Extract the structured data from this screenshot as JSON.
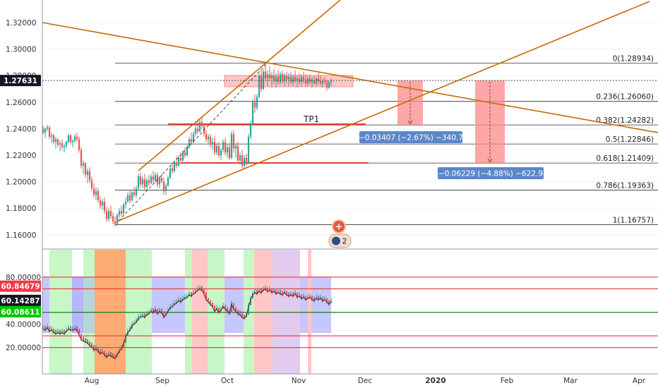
{
  "chart_data": [
    {
      "type": "candlestick",
      "panel": "price",
      "y_ticks": [
        "1.32000",
        "1.30000",
        "1.28000",
        "1.26000",
        "1.24000",
        "1.22000",
        "1.20000",
        "1.18000",
        "1.16000"
      ],
      "ylim": [
        1.151,
        1.334
      ],
      "current_price_label": "1.27631",
      "current_price": 1.27631,
      "fib_levels": [
        {
          "ratio": 0,
          "price": 1.28934,
          "label": "0(1.28934)"
        },
        {
          "ratio": 0.236,
          "price": 1.2606,
          "label": "0.236(1.26060)"
        },
        {
          "ratio": 0.382,
          "price": 1.24282,
          "label": "0.382(1.24282)"
        },
        {
          "ratio": 0.5,
          "price": 1.22846,
          "label": "0.5(1.22846)"
        },
        {
          "ratio": 0.618,
          "price": 1.21409,
          "label": "0.618(1.21409)"
        },
        {
          "ratio": 0.786,
          "price": 1.19363,
          "label": "0.786(1.19363)"
        },
        {
          "ratio": 1,
          "price": 1.16757,
          "label": "1(1.16757)"
        }
      ],
      "annotations": {
        "tp1": "TP1",
        "measure_1": "−0.03407 (−2.67%) −340.7",
        "measure_2": "−0.06229 (−4.88%) −622.9",
        "badge_count": "2"
      },
      "x_ticks": [
        "Aug",
        "Sep",
        "Oct",
        "Nov",
        "Dec",
        "2020",
        "Feb",
        "Mar",
        "Apr"
      ],
      "colors": {
        "up": "#26a69a",
        "down": "#ef5350",
        "trend": "#c56a00",
        "fib": "#333333",
        "price_tag": "#131722"
      }
    },
    {
      "type": "line",
      "panel": "oscillator",
      "y_ticks": [
        "80.00000",
        "60.00000",
        "40.00000",
        "20.00000"
      ],
      "ylim": [
        0,
        100
      ],
      "labels": [
        {
          "text": "60.84679",
          "value": 60.84679,
          "color": "#f23645"
        },
        {
          "text": "60.14287",
          "value": 60.14287,
          "color": "#131722"
        },
        {
          "text": "60.08611",
          "value": 60.08611,
          "color": "#00c800"
        }
      ],
      "levels": [
        80,
        70,
        50,
        30,
        20
      ],
      "colors": {
        "green_zone": "#90ee90",
        "blue_zone": "#9999ff",
        "red_zone": "#ff9999",
        "orange_zone": "#ff6600"
      }
    }
  ]
}
